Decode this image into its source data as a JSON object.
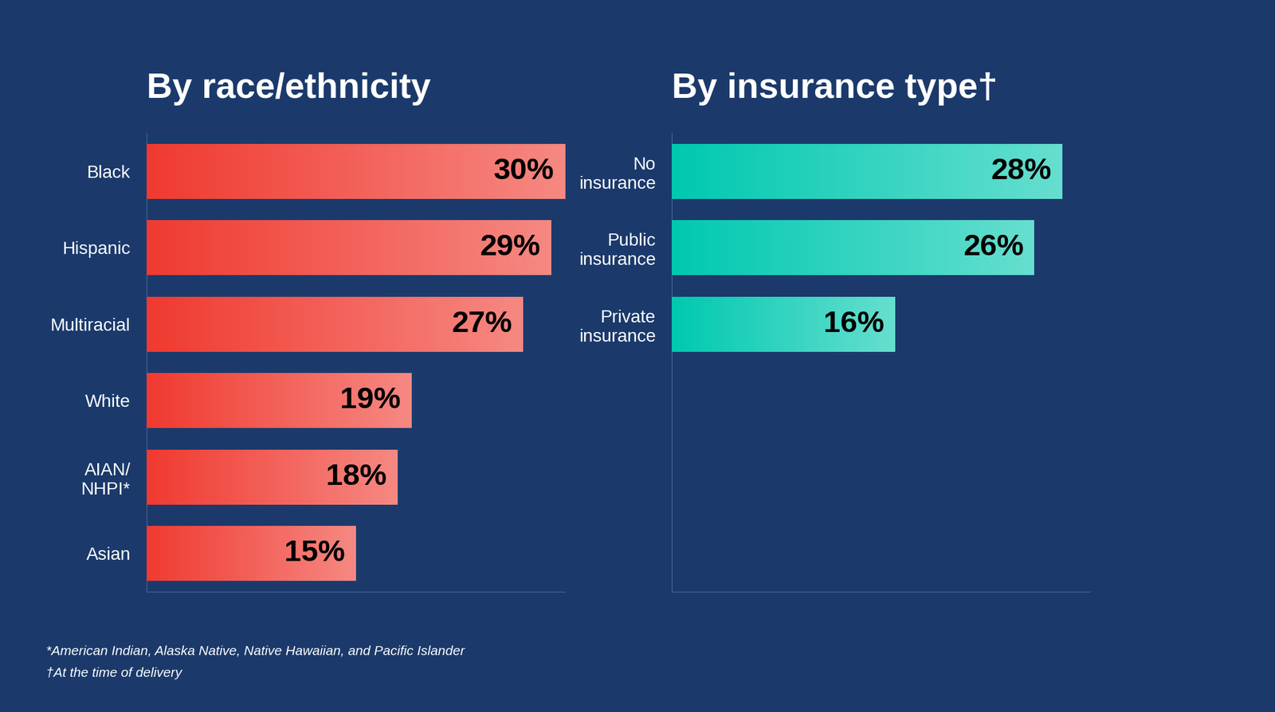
{
  "chart_data": [
    {
      "type": "bar",
      "orientation": "horizontal",
      "title": "By race/ethnicity",
      "categories": [
        "Black",
        "Hispanic",
        "Multiracial",
        "White",
        "AIAN/\nNHPI*",
        "Asian"
      ],
      "values": [
        30,
        29,
        27,
        19,
        18,
        15
      ],
      "value_labels": [
        "30%",
        "29%",
        "27%",
        "19%",
        "18%",
        "15%"
      ],
      "color": "#f03a30",
      "xlim": [
        0,
        30
      ],
      "data_labels": true,
      "tick_labels": "y",
      "grid": false
    },
    {
      "type": "bar",
      "orientation": "horizontal",
      "title": "By insurance type†",
      "categories": [
        "No\ninsurance",
        "Public\ninsurance",
        "Private\ninsurance"
      ],
      "values": [
        28,
        26,
        16
      ],
      "value_labels": [
        "28%",
        "26%",
        "16%"
      ],
      "color": "#00c9b0",
      "xlim": [
        0,
        30
      ],
      "data_labels": true,
      "tick_labels": "y",
      "grid": false
    }
  ],
  "footnotes": [
    "*American Indian, Alaska Native, Native Hawaiian, and Pacific Islander",
    "†At the time of delivery"
  ]
}
